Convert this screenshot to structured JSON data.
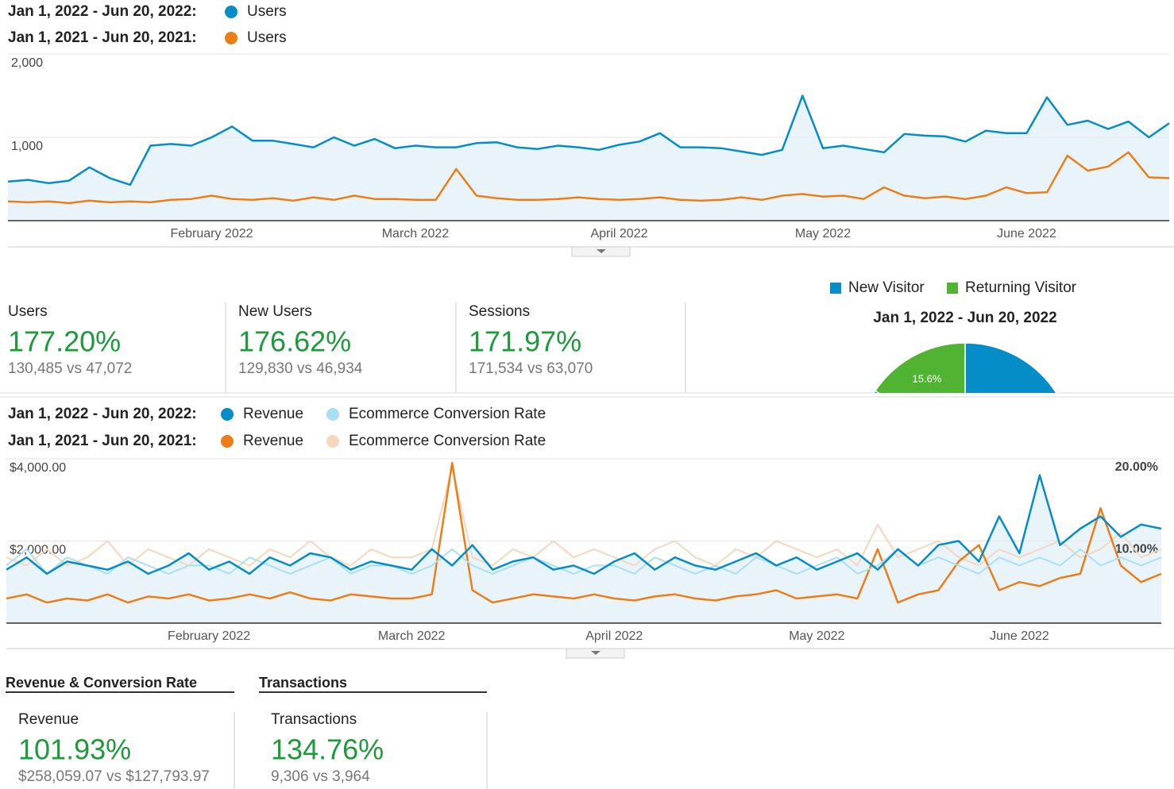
{
  "chart_data": [
    {
      "type": "line",
      "periods": [
        "Jan 1, 2022 - Jun 20, 2022:",
        "Jan 1, 2021 - Jun 20, 2021:"
      ],
      "categories": [
        null,
        null,
        null,
        null,
        null,
        null,
        null,
        null,
        null,
        null,
        "February 2022",
        null,
        null,
        null,
        null,
        null,
        null,
        null,
        null,
        null,
        "March 2022",
        null,
        null,
        null,
        null,
        null,
        null,
        null,
        null,
        null,
        "April 2022",
        null,
        null,
        null,
        null,
        null,
        null,
        null,
        null,
        null,
        "May 2022",
        null,
        null,
        null,
        null,
        null,
        null,
        null,
        null,
        null,
        "June 2022",
        null,
        null,
        null,
        null,
        null,
        null,
        null
      ],
      "ylim": [
        0,
        2000
      ],
      "yticks": [
        {
          "value": 2000,
          "label": "2,000"
        },
        {
          "value": 1000,
          "label": "1,000"
        }
      ],
      "grid": true,
      "series": [
        {
          "name": "Users",
          "color": "#058dc7",
          "area": true,
          "values": [
            470,
            490,
            450,
            480,
            640,
            510,
            430,
            900,
            920,
            900,
            1000,
            1130,
            960,
            960,
            920,
            880,
            1000,
            900,
            980,
            870,
            900,
            880,
            880,
            930,
            940,
            880,
            860,
            900,
            880,
            850,
            910,
            950,
            1050,
            880,
            880,
            870,
            830,
            790,
            850,
            1500,
            870,
            900,
            860,
            820,
            1040,
            1020,
            1010,
            950,
            1080,
            1050,
            1050,
            1480,
            1150,
            1200,
            1100,
            1190,
            1000,
            1170
          ]
        },
        {
          "name": "Users",
          "color": "#ed7e17",
          "values": [
            230,
            220,
            230,
            210,
            240,
            220,
            230,
            220,
            250,
            260,
            300,
            260,
            250,
            270,
            240,
            280,
            250,
            300,
            260,
            260,
            250,
            250,
            620,
            300,
            270,
            250,
            250,
            260,
            280,
            260,
            250,
            260,
            280,
            250,
            240,
            250,
            280,
            250,
            300,
            320,
            290,
            300,
            260,
            400,
            300,
            270,
            290,
            260,
            300,
            400,
            330,
            340,
            780,
            600,
            650,
            820,
            520,
            510
          ]
        }
      ]
    },
    {
      "type": "line",
      "periods": [
        "Jan 1, 2022 - Jun 20, 2022:",
        "Jan 1, 2021 - Jun 20, 2021:"
      ],
      "categories": [
        null,
        null,
        null,
        null,
        null,
        null,
        null,
        null,
        null,
        null,
        "February 2022",
        null,
        null,
        null,
        null,
        null,
        null,
        null,
        null,
        null,
        "March 2022",
        null,
        null,
        null,
        null,
        null,
        null,
        null,
        null,
        null,
        "April 2022",
        null,
        null,
        null,
        null,
        null,
        null,
        null,
        null,
        null,
        "May 2022",
        null,
        null,
        null,
        null,
        null,
        null,
        null,
        null,
        null,
        "June 2022",
        null,
        null,
        null,
        null,
        null,
        null,
        null
      ],
      "ylim": [
        0,
        4000
      ],
      "yticks": [
        {
          "value": 4000,
          "label": "$4,000.00"
        },
        {
          "value": 2000,
          "label": "$2,000.00"
        }
      ],
      "y2lim": [
        0,
        20
      ],
      "y2ticks": [
        {
          "value": 20,
          "label": "20.00%"
        },
        {
          "value": 10,
          "label": "10.00%"
        }
      ],
      "grid": true,
      "series": [
        {
          "name": "Revenue",
          "color": "#058dc7",
          "area": true,
          "values": [
            1300,
            1600,
            1200,
            1500,
            1400,
            1300,
            1500,
            1200,
            1400,
            1700,
            1300,
            1500,
            1200,
            1600,
            1400,
            1700,
            1600,
            1300,
            1500,
            1400,
            1300,
            1800,
            1400,
            1900,
            1300,
            1500,
            1600,
            1300,
            1400,
            1200,
            1500,
            1700,
            1300,
            1600,
            1400,
            1300,
            1500,
            1700,
            1400,
            1600,
            1300,
            1500,
            1700,
            1300,
            1800,
            1400,
            1900,
            2000,
            1500,
            2600,
            1700,
            3600,
            1900,
            2300,
            2600,
            2100,
            2400,
            2300
          ]
        },
        {
          "name": "Ecommerce Conversion Rate",
          "color": "#aadff3",
          "axis": "y2",
          "values": [
            7,
            9,
            6,
            8,
            7,
            6,
            8,
            7,
            6,
            7,
            7,
            6,
            8,
            7,
            6,
            7,
            8,
            6,
            7,
            7,
            6,
            7,
            9,
            7,
            6,
            7,
            8,
            7,
            6,
            7,
            7,
            6,
            8,
            7,
            6,
            7,
            6,
            8,
            7,
            6,
            7,
            8,
            6,
            7,
            9,
            7,
            8,
            7,
            6,
            8,
            7,
            8,
            7,
            9,
            7,
            8,
            7,
            8
          ]
        },
        {
          "name": "Revenue",
          "color": "#ed7e17",
          "values": [
            600,
            700,
            500,
            600,
            550,
            700,
            500,
            650,
            600,
            700,
            550,
            600,
            700,
            600,
            750,
            600,
            550,
            700,
            650,
            600,
            600,
            700,
            3900,
            800,
            500,
            600,
            700,
            650,
            600,
            700,
            600,
            550,
            650,
            700,
            600,
            550,
            650,
            700,
            800,
            600,
            650,
            700,
            600,
            1800,
            500,
            700,
            800,
            1500,
            1900,
            800,
            1000,
            900,
            1100,
            1200,
            2800,
            1400,
            1000,
            1200
          ]
        },
        {
          "name": "Ecommerce Conversion Rate",
          "color": "#f4d7bd",
          "axis": "y2",
          "values": [
            8,
            7,
            9,
            7,
            8,
            10,
            7,
            9,
            8,
            7,
            9,
            8,
            7,
            9,
            8,
            10,
            8,
            7,
            9,
            8,
            8,
            9,
            19,
            8,
            7,
            9,
            8,
            10,
            8,
            9,
            8,
            7,
            9,
            10,
            8,
            7,
            9,
            8,
            10,
            9,
            8,
            9,
            7,
            12,
            8,
            9,
            10,
            8,
            7,
            9,
            8,
            9,
            10,
            8,
            9,
            11,
            8,
            9
          ]
        }
      ]
    },
    {
      "type": "pie",
      "subtitle": "Jan 1, 2022 - Jun 20, 2022",
      "categories": [
        "New Visitor",
        "Returning Visitor"
      ],
      "values": [
        84.4,
        15.6
      ],
      "value_labels": [
        null,
        "15.6%"
      ],
      "colors": [
        "#058dc7",
        "#50b432"
      ]
    }
  ],
  "scorecards": [
    {
      "label": "Users",
      "value": "177.20%",
      "compare": "130,485 vs 47,072"
    },
    {
      "label": "New Users",
      "value": "176.62%",
      "compare": "129,830 vs 46,934"
    },
    {
      "label": "Sessions",
      "value": "171.97%",
      "compare": "171,534 vs 63,070"
    }
  ],
  "tabs": [
    "Revenue & Conversion Rate",
    "Transactions"
  ],
  "bottom_cards": [
    {
      "label": "Revenue",
      "value": "101.93%",
      "compare": "$258,059.07 vs $127,793.97"
    },
    {
      "label": "Transactions",
      "value": "134.76%",
      "compare": "9,306 vs 3,964"
    }
  ]
}
